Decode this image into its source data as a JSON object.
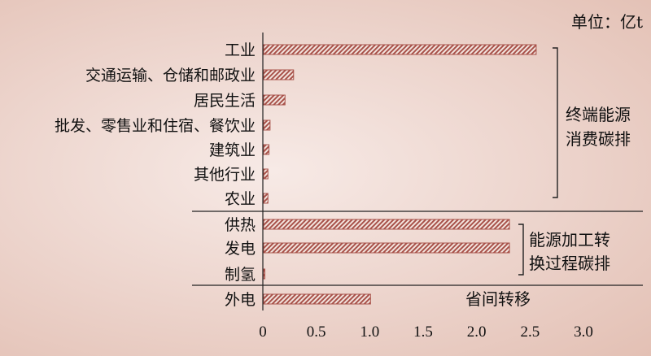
{
  "chart_data": {
    "type": "bar",
    "orientation": "horizontal",
    "unit_label": "单位：亿t",
    "categories": [
      "工业",
      "交通运输、仓储和邮政业",
      "居民生活",
      "批发、零售业和住宿、餐饮业",
      "建筑业",
      "其他行业",
      "农业",
      "供热",
      "发电",
      "制氢",
      "外电"
    ],
    "values": [
      2.55,
      0.28,
      0.2,
      0.06,
      0.05,
      0.04,
      0.04,
      2.3,
      2.3,
      0.01,
      1.0
    ],
    "xlim": [
      0,
      3.0
    ],
    "xticks": [
      "0",
      "0.5",
      "1.0",
      "1.5",
      "2.0",
      "2.5",
      "3.0"
    ],
    "groups": [
      {
        "label_lines": [
          "终端能源",
          "消费碳排"
        ],
        "from": 0,
        "to": 6
      },
      {
        "label_lines": [
          "能源加工转",
          "换过程碳排"
        ],
        "from": 7,
        "to": 9
      },
      {
        "label_lines": [
          "省间转移"
        ],
        "from": 10,
        "to": 10
      }
    ],
    "bar_color": "#a8524a",
    "grid": false,
    "legend": "none"
  }
}
